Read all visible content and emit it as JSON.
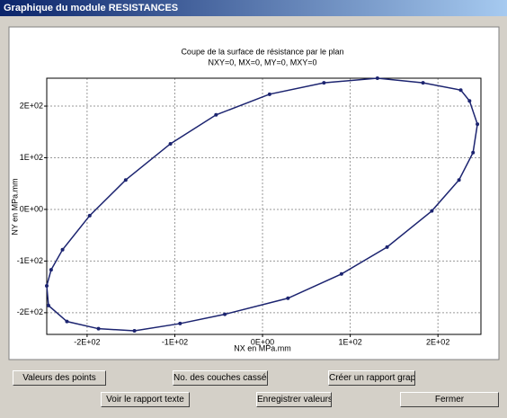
{
  "window": {
    "title": "Graphique du module RESISTANCES",
    "buttons": [
      "Valeurs des points",
      "No. des couches cassées",
      "Créer un rapport graphique",
      "Voir le rapport texte",
      "Enregistrer valeurs",
      "Fermer"
    ]
  },
  "chart_data": {
    "type": "line",
    "title": "Coupe de la surface de résistance par le plan",
    "subtitle": "NXY=0, MX=0, MY=0, MXY=0",
    "x_label": "NX en MPa.mm",
    "y_label": "NY en MPa.mm",
    "x": [
      -246,
      -241,
      -228,
      -197,
      -156,
      -105,
      -53,
      8,
      70,
      131,
      183,
      226,
      236,
      245,
      240,
      224,
      193,
      142,
      90,
      29,
      -43,
      -94,
      -146,
      -187,
      -223,
      -244
    ],
    "values": [
      -148,
      -117,
      -78,
      -12,
      57,
      127,
      183,
      223,
      245,
      254,
      245,
      231,
      210,
      165,
      110,
      57,
      -3,
      -73,
      -125,
      -172,
      -203,
      -221,
      -235,
      -231,
      -217,
      -186
    ],
    "color": "#1c2470",
    "xlim": [
      -246,
      249
    ],
    "ylim": [
      -242,
      254
    ],
    "xticks": [
      {
        "value": -200,
        "label": "-2E+02"
      },
      {
        "value": -100,
        "label": "-1E+02"
      },
      {
        "value": 0,
        "label": "0E+00"
      },
      {
        "value": 100,
        "label": "1E+02"
      },
      {
        "value": 200,
        "label": "2E+02"
      }
    ],
    "yticks": [
      {
        "value": -200,
        "label": "-2E+02"
      },
      {
        "value": -100,
        "label": "-1E+02"
      },
      {
        "value": 0,
        "label": "0E+00"
      },
      {
        "value": 100,
        "label": "1E+02"
      },
      {
        "value": 200,
        "label": "2E+02"
      }
    ],
    "grid": true
  }
}
